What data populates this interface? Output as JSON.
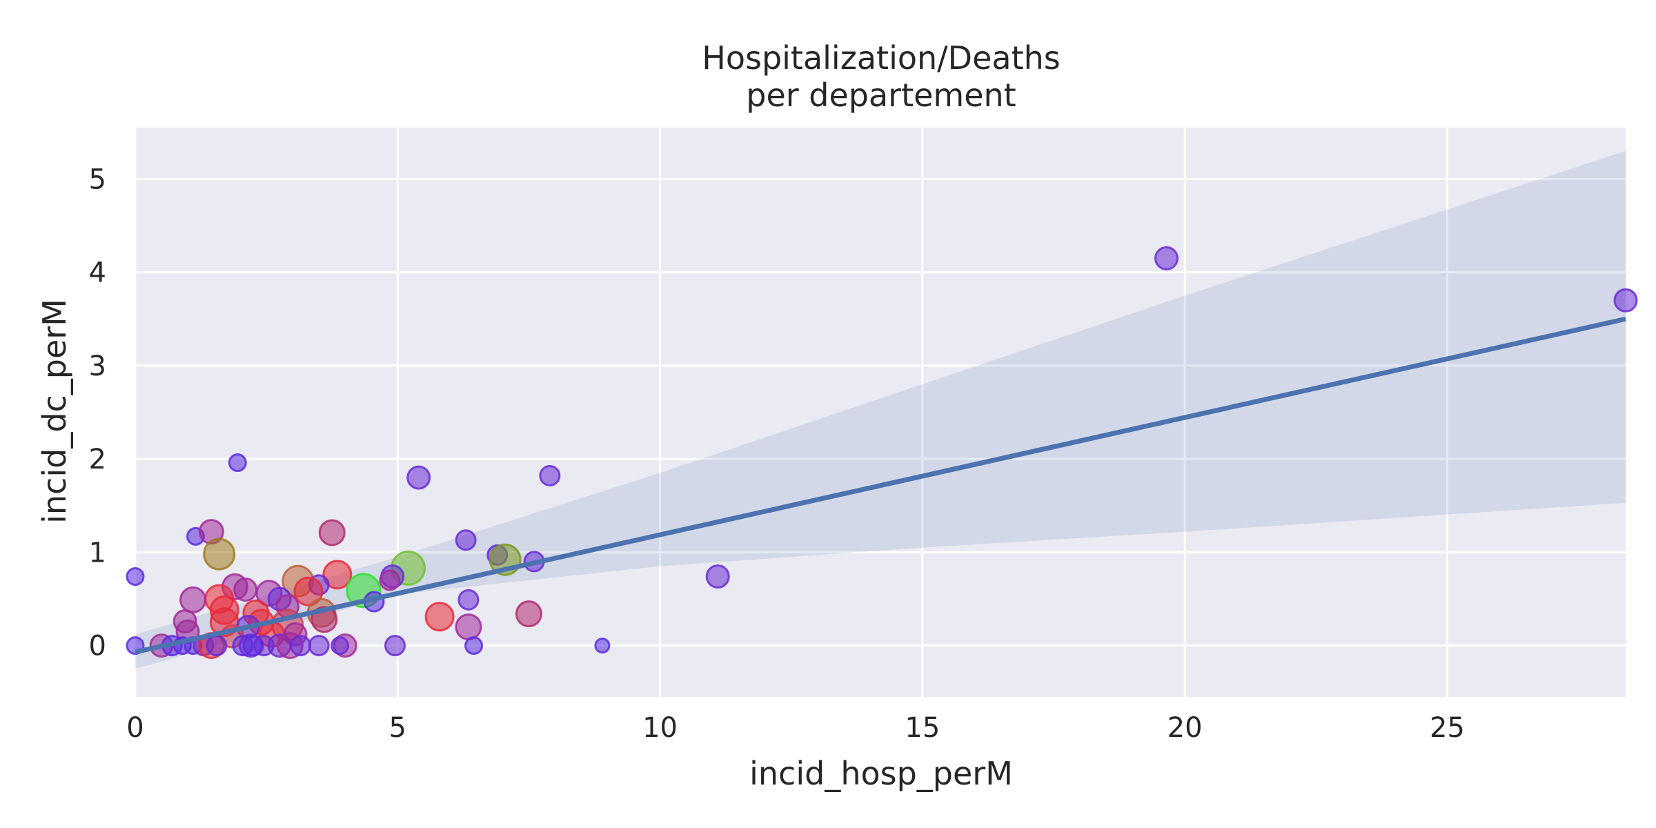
{
  "chart_data": {
    "type": "scatter",
    "title_lines": [
      "Hospitalization/Deaths",
      "per departement"
    ],
    "xlabel": "incid_hosp_perM",
    "ylabel": "incid_dc_perM",
    "xlim": [
      0,
      28.4
    ],
    "ylim": [
      -0.55,
      5.55
    ],
    "xticks": [
      0,
      5,
      10,
      15,
      20,
      25
    ],
    "yticks": [
      0,
      1,
      2,
      3,
      4,
      5
    ],
    "xtick_labels": [
      "0",
      "5",
      "10",
      "15",
      "20",
      "25"
    ],
    "ytick_labels": [
      "0",
      "1",
      "2",
      "3",
      "4",
      "5"
    ],
    "grid": true,
    "background_color": "#eaeaf2",
    "grid_color": "#ffffff",
    "regression_line": {
      "x": [
        0,
        28.4
      ],
      "y": [
        -0.07,
        3.5
      ],
      "color": "#4c72b0"
    },
    "confidence_band": {
      "x": [
        0,
        5,
        10,
        15,
        20,
        28.4
      ],
      "upper": [
        0.12,
        0.95,
        1.85,
        2.8,
        3.75,
        5.3
      ],
      "lower": [
        -0.25,
        0.55,
        0.85,
        1.05,
        1.22,
        1.53
      ],
      "color": "#4c72b0"
    },
    "points": [
      {
        "x": 19.65,
        "y": 4.15,
        "size": 16,
        "color": "#6a2bd6"
      },
      {
        "x": 28.4,
        "y": 3.7,
        "size": 16,
        "color": "#6a2bd6"
      },
      {
        "x": 1.95,
        "y": 1.96,
        "size": 12,
        "color": "#5a2be0"
      },
      {
        "x": 5.4,
        "y": 1.8,
        "size": 16,
        "color": "#6a2bd6"
      },
      {
        "x": 7.9,
        "y": 1.82,
        "size": 14,
        "color": "#6a2bd6"
      },
      {
        "x": 1.15,
        "y": 1.17,
        "size": 12,
        "color": "#5a2be0"
      },
      {
        "x": 1.45,
        "y": 1.22,
        "size": 17,
        "color": "#a02a9a"
      },
      {
        "x": 3.75,
        "y": 1.21,
        "size": 18,
        "color": "#b02a70"
      },
      {
        "x": 1.6,
        "y": 0.98,
        "size": 22,
        "color": "#a07a20"
      },
      {
        "x": 6.3,
        "y": 1.13,
        "size": 14,
        "color": "#6a2bd6"
      },
      {
        "x": 6.9,
        "y": 0.97,
        "size": 14,
        "color": "#6a2bd6"
      },
      {
        "x": 7.05,
        "y": 0.92,
        "size": 22,
        "color": "#7a9a20"
      },
      {
        "x": 7.6,
        "y": 0.9,
        "size": 14,
        "color": "#6a2bd6"
      },
      {
        "x": 5.2,
        "y": 0.83,
        "size": 24,
        "color": "#70c030"
      },
      {
        "x": 11.1,
        "y": 0.74,
        "size": 16,
        "color": "#6a2bd6"
      },
      {
        "x": 0.0,
        "y": 0.74,
        "size": 12,
        "color": "#5a2be0"
      },
      {
        "x": 3.85,
        "y": 0.76,
        "size": 20,
        "color": "#e82a3a"
      },
      {
        "x": 4.9,
        "y": 0.74,
        "size": 16,
        "color": "#6a2bd6"
      },
      {
        "x": 4.85,
        "y": 0.7,
        "size": 14,
        "color": "#a02a9a"
      },
      {
        "x": 3.1,
        "y": 0.69,
        "size": 22,
        "color": "#c0603a"
      },
      {
        "x": 3.5,
        "y": 0.65,
        "size": 14,
        "color": "#6a2bd6"
      },
      {
        "x": 1.9,
        "y": 0.63,
        "size": 18,
        "color": "#a02a9a"
      },
      {
        "x": 2.1,
        "y": 0.6,
        "size": 16,
        "color": "#a02a9a"
      },
      {
        "x": 3.3,
        "y": 0.58,
        "size": 20,
        "color": "#e82a3a"
      },
      {
        "x": 4.35,
        "y": 0.59,
        "size": 24,
        "color": "#30e030"
      },
      {
        "x": 2.55,
        "y": 0.56,
        "size": 18,
        "color": "#a02a9a"
      },
      {
        "x": 1.6,
        "y": 0.5,
        "size": 20,
        "color": "#e82a3a"
      },
      {
        "x": 1.1,
        "y": 0.49,
        "size": 18,
        "color": "#a02a9a"
      },
      {
        "x": 2.75,
        "y": 0.5,
        "size": 16,
        "color": "#6a2bd6"
      },
      {
        "x": 4.55,
        "y": 0.47,
        "size": 14,
        "color": "#5a2be0"
      },
      {
        "x": 6.35,
        "y": 0.49,
        "size": 14,
        "color": "#6a2bd6"
      },
      {
        "x": 2.9,
        "y": 0.42,
        "size": 16,
        "color": "#a02a9a"
      },
      {
        "x": 1.7,
        "y": 0.38,
        "size": 20,
        "color": "#e82a3a"
      },
      {
        "x": 2.3,
        "y": 0.35,
        "size": 18,
        "color": "#e82a3a"
      },
      {
        "x": 3.55,
        "y": 0.35,
        "size": 20,
        "color": "#c0603a"
      },
      {
        "x": 7.5,
        "y": 0.34,
        "size": 18,
        "color": "#b02a70"
      },
      {
        "x": 5.8,
        "y": 0.31,
        "size": 20,
        "color": "#e82a3a"
      },
      {
        "x": 3.6,
        "y": 0.28,
        "size": 18,
        "color": "#b02a70"
      },
      {
        "x": 0.95,
        "y": 0.26,
        "size": 16,
        "color": "#a02a9a"
      },
      {
        "x": 1.7,
        "y": 0.25,
        "size": 20,
        "color": "#e82a3a"
      },
      {
        "x": 2.4,
        "y": 0.25,
        "size": 18,
        "color": "#e82a3a"
      },
      {
        "x": 2.9,
        "y": 0.22,
        "size": 22,
        "color": "#d03a50"
      },
      {
        "x": 2.15,
        "y": 0.2,
        "size": 16,
        "color": "#6a2bd6"
      },
      {
        "x": 6.35,
        "y": 0.2,
        "size": 18,
        "color": "#a02a9a"
      },
      {
        "x": 1.0,
        "y": 0.15,
        "size": 16,
        "color": "#a02a9a"
      },
      {
        "x": 2.6,
        "y": 0.12,
        "size": 18,
        "color": "#e82a3a"
      },
      {
        "x": 3.05,
        "y": 0.12,
        "size": 16,
        "color": "#a02a9a"
      },
      {
        "x": 1.85,
        "y": 0.1,
        "size": 16,
        "color": "#d03a50"
      },
      {
        "x": 0.0,
        "y": 0.0,
        "size": 12,
        "color": "#5a2be0"
      },
      {
        "x": 0.5,
        "y": 0.0,
        "size": 16,
        "color": "#a02a9a"
      },
      {
        "x": 0.7,
        "y": 0.0,
        "size": 14,
        "color": "#5a2be0"
      },
      {
        "x": 0.9,
        "y": 0.0,
        "size": 12,
        "color": "#5a2be0"
      },
      {
        "x": 1.1,
        "y": 0.0,
        "size": 12,
        "color": "#5a2be0"
      },
      {
        "x": 1.3,
        "y": 0.0,
        "size": 14,
        "color": "#6a2bd6"
      },
      {
        "x": 1.45,
        "y": 0.0,
        "size": 18,
        "color": "#e82a3a"
      },
      {
        "x": 1.55,
        "y": 0.0,
        "size": 14,
        "color": "#6a2bd6"
      },
      {
        "x": 2.05,
        "y": 0.0,
        "size": 14,
        "color": "#5a2be0"
      },
      {
        "x": 2.2,
        "y": 0.0,
        "size": 16,
        "color": "#6a2bd6"
      },
      {
        "x": 2.25,
        "y": 0.0,
        "size": 14,
        "color": "#5a2be0"
      },
      {
        "x": 2.45,
        "y": 0.0,
        "size": 14,
        "color": "#6a2bd6"
      },
      {
        "x": 2.75,
        "y": 0.0,
        "size": 16,
        "color": "#6a2bd6"
      },
      {
        "x": 2.95,
        "y": 0.0,
        "size": 18,
        "color": "#a02a9a"
      },
      {
        "x": 3.15,
        "y": 0.0,
        "size": 14,
        "color": "#6a2bd6"
      },
      {
        "x": 3.5,
        "y": 0.0,
        "size": 14,
        "color": "#6a2bd6"
      },
      {
        "x": 4.0,
        "y": 0.0,
        "size": 16,
        "color": "#a02a9a"
      },
      {
        "x": 3.9,
        "y": 0.0,
        "size": 12,
        "color": "#6a2bd6"
      },
      {
        "x": 4.95,
        "y": 0.0,
        "size": 14,
        "color": "#6a2bd6"
      },
      {
        "x": 6.45,
        "y": 0.0,
        "size": 12,
        "color": "#5a2be0"
      },
      {
        "x": 8.9,
        "y": 0.0,
        "size": 10,
        "color": "#5a2be0"
      }
    ]
  }
}
